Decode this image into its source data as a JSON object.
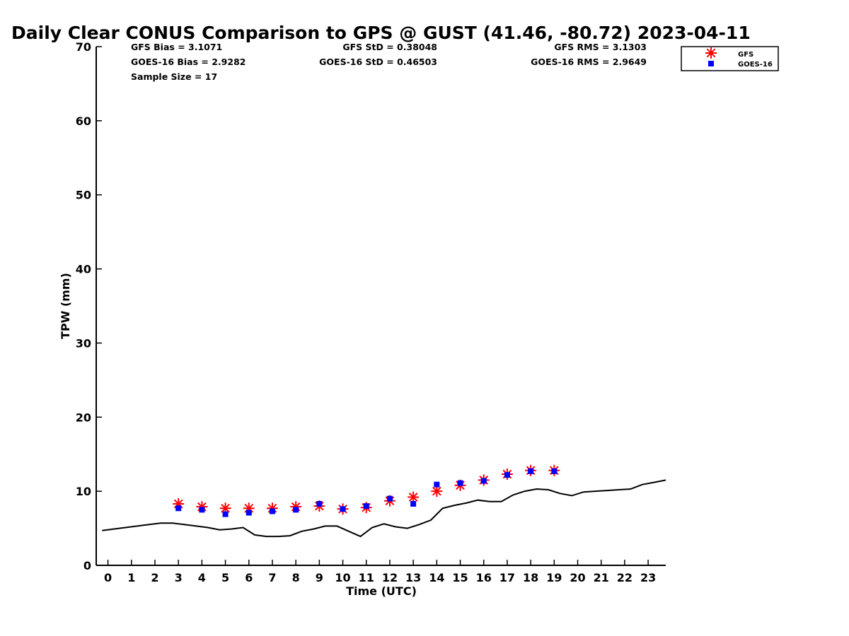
{
  "chart_data": {
    "type": "scatter",
    "title": "Daily Clear CONUS Comparison to GPS @ GUST (41.46, -80.72) 2023-04-11",
    "xlabel": "Time (UTC)",
    "ylabel": "TPW (mm)",
    "xlim": [
      -0.5,
      23.75
    ],
    "ylim": [
      0,
      70
    ],
    "xticks": [
      0,
      1,
      2,
      3,
      4,
      5,
      6,
      7,
      8,
      9,
      10,
      11,
      12,
      13,
      14,
      15,
      16,
      17,
      18,
      19,
      20,
      21,
      22,
      23
    ],
    "yticks": [
      0,
      10,
      20,
      30,
      40,
      50,
      60,
      70
    ],
    "grid": false,
    "legend_position": "top-right",
    "stats": {
      "gfs_bias": "GFS Bias = 3.1071",
      "goes_bias": "GOES-16 Bias = 2.9282",
      "sample_size": "Sample Size = 17",
      "gfs_std": "GFS StD = 0.38048",
      "goes_std": "GOES-16 StD = 0.46503",
      "gfs_rms": "GFS RMS = 3.1303",
      "goes_rms": "GOES-16 RMS = 2.9649"
    },
    "series": [
      {
        "name": "GFS",
        "marker": "asterisk",
        "color": "#ff0000",
        "x": [
          3,
          4,
          5,
          6,
          7,
          8,
          9,
          10,
          11,
          12,
          13,
          14,
          15,
          16,
          17,
          18,
          19
        ],
        "y": [
          8.3,
          7.9,
          7.7,
          7.7,
          7.7,
          7.9,
          8.0,
          7.6,
          7.8,
          8.7,
          9.2,
          10.0,
          10.8,
          11.5,
          12.3,
          12.8,
          12.8
        ]
      },
      {
        "name": "GOES-16",
        "marker": "square",
        "color": "#0000ff",
        "x": [
          3,
          4,
          5,
          6,
          7,
          8,
          9,
          10,
          11,
          12,
          13,
          14,
          15,
          16,
          17,
          18,
          19
        ],
        "y": [
          7.7,
          7.5,
          6.9,
          7.1,
          7.3,
          7.5,
          8.3,
          7.6,
          8.0,
          9.0,
          8.3,
          10.9,
          11.1,
          11.4,
          12.2,
          12.7,
          12.7
        ]
      },
      {
        "marker": "line",
        "color": "#000000",
        "x": [
          -0.25,
          0.25,
          0.75,
          1.25,
          1.75,
          2.25,
          2.75,
          3.25,
          3.75,
          4.25,
          4.75,
          5.25,
          5.75,
          6.25,
          6.75,
          7.25,
          7.75,
          8.25,
          8.75,
          9.25,
          9.75,
          10.25,
          10.75,
          11.25,
          11.75,
          12.25,
          12.75,
          13.25,
          13.75,
          14.25,
          14.75,
          15.25,
          15.75,
          16.25,
          16.75,
          17.25,
          17.75,
          18.25,
          18.75,
          19.25,
          19.75,
          20.25,
          20.75,
          21.25,
          21.75,
          22.25,
          22.75,
          23.25,
          23.75
        ],
        "y": [
          4.7,
          4.9,
          5.1,
          5.3,
          5.5,
          5.7,
          5.7,
          5.5,
          5.3,
          5.1,
          4.8,
          4.9,
          5.1,
          4.1,
          3.9,
          3.9,
          4.0,
          4.6,
          4.9,
          5.3,
          5.3,
          4.6,
          3.9,
          5.1,
          5.6,
          5.2,
          5.0,
          5.5,
          6.1,
          7.7,
          8.1,
          8.4,
          8.8,
          8.6,
          8.6,
          9.5,
          10.0,
          10.3,
          10.2,
          9.7,
          9.4,
          9.9,
          10.0,
          10.1,
          10.2,
          10.3,
          10.9,
          11.2,
          11.5
        ]
      }
    ]
  }
}
